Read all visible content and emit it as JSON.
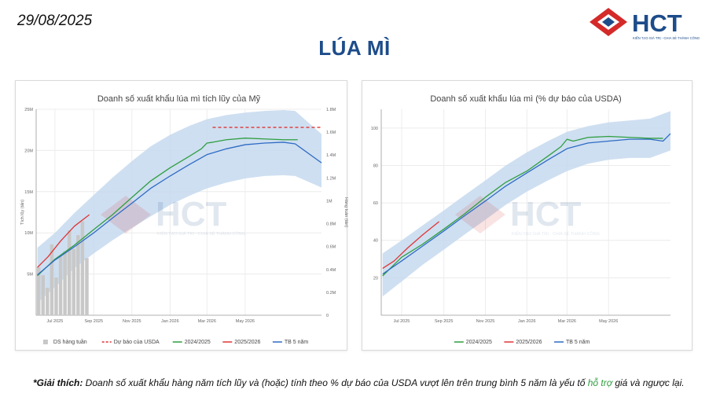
{
  "header": {
    "date": "29/08/2025",
    "page_title": "LÚA MÌ",
    "logo_text": "HCT",
    "logo_tagline": "KIẾN TẠO GIÁ TRỊ - CHIA SẺ THÀNH CÔNG"
  },
  "colors": {
    "title_blue": "#1d4c8a",
    "logo_red": "#d42a2a",
    "band": "#c6d9ef",
    "series_2024": "#2e9e3f",
    "series_2025": "#e03535",
    "series_avg": "#2f6bc4",
    "weekly_bar": "#c8c8c8",
    "forecast": "#e03535",
    "note_green": "#2e9e3f"
  },
  "note": {
    "prefix": "*Giải thích:",
    "body": " Doanh số xuất khẩu hàng năm tích lũy và (hoặc) tính theo % dự báo của USDA vượt lên trên trung bình 5 năm là yếu tố ",
    "highlight": "hỗ trợ",
    "suffix": " giá và ngược lại."
  },
  "chart_data": [
    {
      "type": "line",
      "title": "Doanh số xuất khẩu lúa mì tích lũy của Mỹ",
      "ylabel": "Tích lũy (tấn)",
      "y2label": "Hàng tuần (tấn)",
      "x_range": [
        "2025-06-01",
        "2026-08-31"
      ],
      "ylim": [
        0,
        25000000
      ],
      "y2lim": [
        0,
        1800000
      ],
      "x_ticks": [
        "2025-07-01",
        "2025-09-01",
        "2025-11-01",
        "2026-01-01",
        "2026-03-01",
        "2026-05-01"
      ],
      "x_tick_labels": [
        "Jul 2025",
        "Sep 2025",
        "Nov 2025",
        "Jan 2026",
        "Mar 2026",
        "May 2026"
      ],
      "y_ticks": [
        5000000,
        10000000,
        15000000,
        20000000,
        25000000
      ],
      "y_tick_labels": [
        "5M",
        "10M",
        "15M",
        "20M",
        "25M"
      ],
      "y2_ticks": [
        0,
        200000,
        400000,
        600000,
        800000,
        1000000,
        1200000,
        1400000,
        1600000,
        1800000
      ],
      "y2_tick_labels": [
        "0",
        "0.2M",
        "0.4M",
        "0.6M",
        "0.8M",
        "1M",
        "1.2M",
        "1.4M",
        "1.6M",
        "1.8M"
      ],
      "band": {
        "x": [
          "2025-06-03",
          "2025-07-01",
          "2025-08-01",
          "2025-09-01",
          "2025-10-01",
          "2025-11-01",
          "2025-12-01",
          "2026-01-01",
          "2026-02-01",
          "2026-03-01",
          "2026-04-01",
          "2026-05-01",
          "2026-06-01",
          "2026-07-01",
          "2026-07-20",
          "2026-08-31"
        ],
        "upper": [
          8200000,
          10000000,
          12400000,
          14600000,
          16700000,
          18700000,
          20500000,
          21900000,
          23000000,
          23800000,
          24300000,
          24600000,
          24800000,
          24900000,
          24800000,
          22000000
        ],
        "lower": [
          1500000,
          3400000,
          5700000,
          7500000,
          9100000,
          10600000,
          12000000,
          13400000,
          14500000,
          15400000,
          16100000,
          16600000,
          16900000,
          17000000,
          16900000,
          15500000
        ]
      },
      "series": [
        {
          "name": "2024/2025",
          "style": "solid",
          "x": [
            "2025-06-03",
            "2025-07-01",
            "2025-08-01",
            "2025-09-01",
            "2025-10-01",
            "2025-11-01",
            "2025-12-01",
            "2026-01-01",
            "2026-02-01",
            "2026-02-20",
            "2026-03-01",
            "2026-03-10",
            "2026-04-01",
            "2026-05-01",
            "2026-06-01",
            "2026-07-01",
            "2026-07-24"
          ],
          "y": [
            4800000,
            6800000,
            8500000,
            10400000,
            12200000,
            14300000,
            16300000,
            17900000,
            19300000,
            20200000,
            20900000,
            21000000,
            21300000,
            21500000,
            21400000,
            21300000,
            21300000
          ]
        },
        {
          "name": "2025/2026",
          "style": "solid",
          "x": [
            "2025-06-03",
            "2025-06-20",
            "2025-07-10",
            "2025-08-01",
            "2025-08-25"
          ],
          "y": [
            5800000,
            7100000,
            9000000,
            10800000,
            12200000
          ]
        },
        {
          "name": "TB 5 năm",
          "style": "solid",
          "x": [
            "2025-06-03",
            "2025-07-01",
            "2025-08-01",
            "2025-09-01",
            "2025-10-01",
            "2025-11-01",
            "2025-12-01",
            "2026-01-01",
            "2026-02-01",
            "2026-03-01",
            "2026-04-01",
            "2026-05-01",
            "2026-06-01",
            "2026-07-01",
            "2026-07-20",
            "2026-08-31"
          ],
          "y": [
            4900000,
            6700000,
            8300000,
            10000000,
            11800000,
            13600000,
            15400000,
            16900000,
            18300000,
            19500000,
            20200000,
            20700000,
            20900000,
            21000000,
            20800000,
            18500000
          ]
        },
        {
          "name": "Dự báo của USDA",
          "style": "dashed",
          "x": [
            "2026-03-10",
            "2026-08-31"
          ],
          "y": [
            22800000,
            22800000
          ]
        }
      ],
      "weekly_bars": {
        "name": "DS hàng tuần",
        "axis": "y2",
        "x": [
          "2025-06-05",
          "2025-06-12",
          "2025-06-19",
          "2025-06-26",
          "2025-07-03",
          "2025-07-10",
          "2025-07-17",
          "2025-07-24",
          "2025-07-31",
          "2025-08-07",
          "2025-08-14",
          "2025-08-21"
        ],
        "values": [
          420000,
          350000,
          240000,
          620000,
          330000,
          520000,
          560000,
          740000,
          580000,
          700000,
          820000,
          500000
        ]
      },
      "legend": [
        "DS hàng tuần",
        "Dự báo của USDA",
        "2024/2025",
        "2025/2026",
        "TB 5 năm"
      ],
      "legend_position": "bottom"
    },
    {
      "type": "line",
      "title": "Doanh số xuất khẩu lúa mì (% dự báo của USDA)",
      "x_range": [
        "2025-06-01",
        "2026-07-31"
      ],
      "ylim": [
        0,
        110
      ],
      "x_ticks": [
        "2025-07-01",
        "2025-09-01",
        "2025-11-01",
        "2026-01-01",
        "2026-03-01",
        "2026-05-01"
      ],
      "x_tick_labels": [
        "Jul 2025",
        "Sep 2025",
        "Nov 2025",
        "Jan 2026",
        "Mar 2026",
        "May 2026"
      ],
      "y_ticks": [
        20,
        40,
        60,
        80,
        100
      ],
      "y_tick_labels": [
        "20",
        "40",
        "60",
        "80",
        "100"
      ],
      "band": {
        "x": [
          "2025-06-03",
          "2025-07-01",
          "2025-08-01",
          "2025-09-01",
          "2025-10-01",
          "2025-11-01",
          "2025-12-01",
          "2026-01-01",
          "2026-02-01",
          "2026-03-01",
          "2026-04-01",
          "2026-05-01",
          "2026-06-01",
          "2026-07-01",
          "2026-07-31"
        ],
        "upper": [
          33,
          40,
          48,
          56,
          64,
          72,
          80,
          87,
          93,
          98,
          101,
          103,
          104,
          105,
          109
        ],
        "lower": [
          10,
          18,
          27,
          35,
          43,
          51,
          59,
          66,
          72,
          77,
          81,
          83,
          84,
          84,
          88
        ]
      },
      "series": [
        {
          "name": "2024/2025",
          "x": [
            "2025-06-03",
            "2025-07-01",
            "2025-08-01",
            "2025-09-01",
            "2025-10-01",
            "2025-11-01",
            "2025-12-01",
            "2026-01-01",
            "2026-02-01",
            "2026-02-20",
            "2026-03-01",
            "2026-03-10",
            "2026-04-01",
            "2026-05-01",
            "2026-06-01",
            "2026-07-01",
            "2026-07-20"
          ],
          "y": [
            21,
            31,
            38,
            46,
            54,
            63,
            71,
            77,
            85,
            90,
            94,
            93,
            95,
            95.5,
            95,
            94.5,
            94.5
          ]
        },
        {
          "name": "2025/2026",
          "x": [
            "2025-06-03",
            "2025-06-20",
            "2025-07-10",
            "2025-08-01",
            "2025-08-25"
          ],
          "y": [
            25,
            29,
            36,
            43,
            50
          ]
        },
        {
          "name": "TB 5 năm",
          "x": [
            "2025-06-03",
            "2025-07-01",
            "2025-08-01",
            "2025-09-01",
            "2025-10-01",
            "2025-11-01",
            "2025-12-01",
            "2026-01-01",
            "2026-02-01",
            "2026-03-01",
            "2026-04-01",
            "2026-05-01",
            "2026-06-01",
            "2026-07-01",
            "2026-07-20",
            "2026-07-31"
          ],
          "y": [
            22,
            29,
            37,
            45,
            53,
            61,
            69,
            76,
            83,
            89,
            92,
            93,
            94,
            94,
            93,
            97
          ]
        }
      ],
      "legend": [
        "2024/2025",
        "2025/2026",
        "TB 5 năm"
      ],
      "legend_position": "bottom"
    }
  ]
}
